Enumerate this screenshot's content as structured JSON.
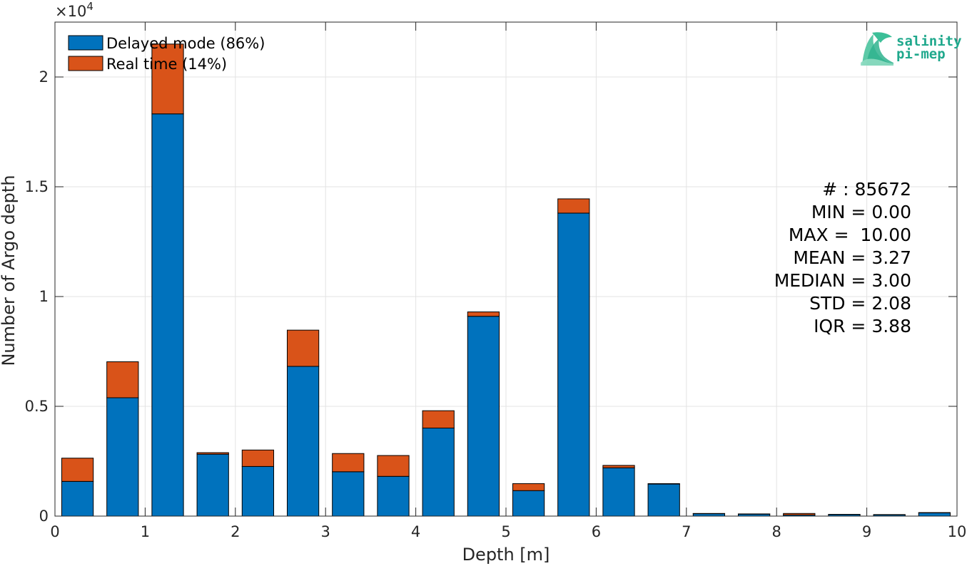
{
  "chart_data": {
    "type": "bar",
    "stacked": true,
    "xlabel": "Depth [m]",
    "ylabel": "Number of Argo depth",
    "y_exponent_label": "×10",
    "y_exponent_power": "4",
    "xlim": [
      0,
      10
    ],
    "ylim": [
      0,
      22500
    ],
    "xticks": [
      0,
      1,
      2,
      3,
      4,
      5,
      6,
      7,
      8,
      9,
      10
    ],
    "xtick_labels": [
      "0",
      "1",
      "2",
      "3",
      "4",
      "5",
      "6",
      "7",
      "8",
      "9",
      "10"
    ],
    "yticks": [
      0,
      5000,
      10000,
      15000,
      20000
    ],
    "ytick_labels": [
      "0",
      "0.5",
      "1",
      "1.5",
      "2"
    ],
    "grid": true,
    "legend_position": "top-left",
    "x": [
      0.25,
      0.75,
      1.25,
      1.75,
      2.25,
      2.75,
      3.25,
      3.75,
      4.25,
      4.75,
      5.25,
      5.75,
      6.25,
      6.75,
      7.25,
      7.75,
      8.25,
      8.75,
      9.25,
      9.75
    ],
    "series": [
      {
        "name": "Delayed mode (86%)",
        "color": "#0072BD",
        "values": [
          1580,
          5390,
          18320,
          2820,
          2260,
          6820,
          2020,
          1810,
          4010,
          9100,
          1160,
          13800,
          2200,
          1460,
          110,
          90,
          50,
          70,
          60,
          150
        ]
      },
      {
        "name": "Real time (14%)",
        "color": "#D95319",
        "values": [
          1060,
          1640,
          3180,
          70,
          750,
          1650,
          830,
          950,
          790,
          200,
          320,
          650,
          110,
          20,
          10,
          10,
          70,
          10,
          10,
          10
        ]
      }
    ],
    "annotations": [
      "# : 85672",
      "MIN = 0.00",
      "MAX =  10.00",
      "MEAN = 3.27",
      "MEDIAN = 3.00",
      "STD = 2.08",
      "IQR = 3.88"
    ]
  },
  "logo": {
    "line1": "salinity",
    "line2": "pi-mep",
    "color": "#1fa88c"
  }
}
